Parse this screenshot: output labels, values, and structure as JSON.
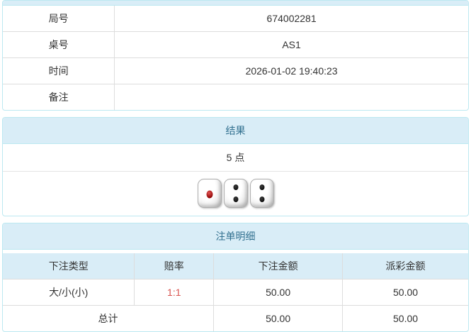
{
  "colors": {
    "panel_border": "#bce8f1",
    "heading_bg": "#d9edf7",
    "heading_text": "#31708f",
    "table_border": "#dddddd",
    "body_text": "#333333",
    "odds_red": "#d9534f"
  },
  "game_info": {
    "rows": [
      {
        "label": "局号",
        "value": "674002281"
      },
      {
        "label": "桌号",
        "value": "AS1"
      },
      {
        "label": "时间",
        "value": "2026-01-02 19:40:23"
      },
      {
        "label": "备注",
        "value": ""
      }
    ]
  },
  "result_panel": {
    "title": "结果",
    "points": "5 点",
    "dice": [
      {
        "value": 1,
        "pip_color": "red"
      },
      {
        "value": 2,
        "pip_color": "black"
      },
      {
        "value": 2,
        "pip_color": "black"
      }
    ]
  },
  "bet_panel": {
    "title": "注单明细",
    "columns": [
      "下注类型",
      "赔率",
      "下注金额",
      "派彩金额"
    ],
    "rows": [
      {
        "bet_type": "大/小(小)",
        "odds": "1:1",
        "bet_amount": "50.00",
        "payout": "50.00"
      }
    ],
    "total": {
      "label": "总计",
      "bet_amount": "50.00",
      "payout": "50.00"
    }
  }
}
